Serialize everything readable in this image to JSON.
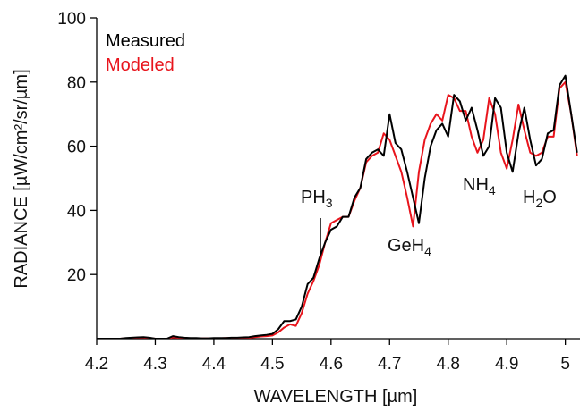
{
  "chart_data": {
    "type": "line",
    "xlabel": "WAVELENGTH [µm]",
    "ylabel": "RADIANCE [µW/cm²/sr/µm]",
    "xlim": [
      4.2,
      5.025
    ],
    "ylim": [
      0,
      100
    ],
    "xticks": [
      4.2,
      4.3,
      4.4,
      4.5,
      4.6,
      4.7,
      4.8,
      4.9,
      5
    ],
    "yticks": [
      20,
      40,
      60,
      80,
      100
    ],
    "x": [
      4.2,
      4.21,
      4.22,
      4.23,
      4.24,
      4.25,
      4.26,
      4.27,
      4.28,
      4.29,
      4.3,
      4.31,
      4.32,
      4.33,
      4.34,
      4.35,
      4.36,
      4.37,
      4.38,
      4.39,
      4.4,
      4.41,
      4.42,
      4.43,
      4.44,
      4.45,
      4.46,
      4.47,
      4.48,
      4.49,
      4.5,
      4.51,
      4.52,
      4.53,
      4.54,
      4.55,
      4.56,
      4.57,
      4.58,
      4.59,
      4.6,
      4.61,
      4.62,
      4.63,
      4.64,
      4.65,
      4.66,
      4.67,
      4.68,
      4.69,
      4.7,
      4.71,
      4.72,
      4.73,
      4.74,
      4.75,
      4.76,
      4.77,
      4.78,
      4.79,
      4.8,
      4.81,
      4.82,
      4.83,
      4.84,
      4.85,
      4.86,
      4.87,
      4.88,
      4.89,
      4.9,
      4.91,
      4.92,
      4.93,
      4.94,
      4.95,
      4.96,
      4.97,
      4.98,
      4.99,
      5.0,
      5.01,
      5.02
    ],
    "series": [
      {
        "name": "Modeled",
        "color": "#e8141c",
        "values": [
          0,
          0,
          0,
          0,
          0,
          0.1,
          0.2,
          0.3,
          0.3,
          0.2,
          0,
          0,
          0,
          0.4,
          0.3,
          0.2,
          0.1,
          0.1,
          0.1,
          0.1,
          0.1,
          0.1,
          0.2,
          0.2,
          0.2,
          0.3,
          0.3,
          0.5,
          0.7,
          0.8,
          1,
          2,
          3.5,
          4.5,
          4,
          8,
          14,
          18,
          23,
          30,
          36,
          37,
          38,
          38,
          43,
          47,
          55,
          57,
          58,
          64,
          62,
          57,
          52,
          44,
          35,
          52,
          62,
          67,
          70,
          68,
          76,
          75,
          71,
          71,
          63,
          58,
          62,
          75,
          70,
          58,
          53,
          62,
          73,
          65,
          58,
          57,
          58,
          63,
          63,
          78,
          80,
          70,
          57
        ]
      },
      {
        "name": "Measured",
        "color": "#000000",
        "values": [
          0,
          0,
          0,
          0,
          0,
          0.2,
          0.3,
          0.4,
          0.5,
          0.3,
          0,
          0,
          0,
          0.8,
          0.5,
          0.3,
          0.2,
          0.2,
          0.1,
          0.1,
          0.2,
          0.2,
          0.2,
          0.3,
          0.3,
          0.4,
          0.5,
          0.8,
          1,
          1.2,
          1.5,
          3,
          5.5,
          5.5,
          6,
          10,
          17,
          19,
          25,
          30,
          34,
          35,
          38,
          38,
          44,
          47,
          56,
          58,
          59,
          57,
          70,
          61,
          59,
          52,
          44,
          36,
          50,
          60,
          65,
          67,
          63,
          76,
          74,
          68,
          72,
          65,
          57,
          60,
          75,
          72,
          58,
          52,
          64,
          72,
          62,
          54,
          56,
          64,
          65,
          79,
          82,
          70,
          58
        ]
      }
    ],
    "annotations": [
      {
        "parts": [
          "PH",
          "3"
        ]
      },
      {
        "parts": [
          "GeH",
          "4"
        ]
      },
      {
        "parts": [
          "NH",
          "4"
        ]
      },
      {
        "parts": [
          "H",
          "2",
          "O"
        ]
      }
    ]
  }
}
